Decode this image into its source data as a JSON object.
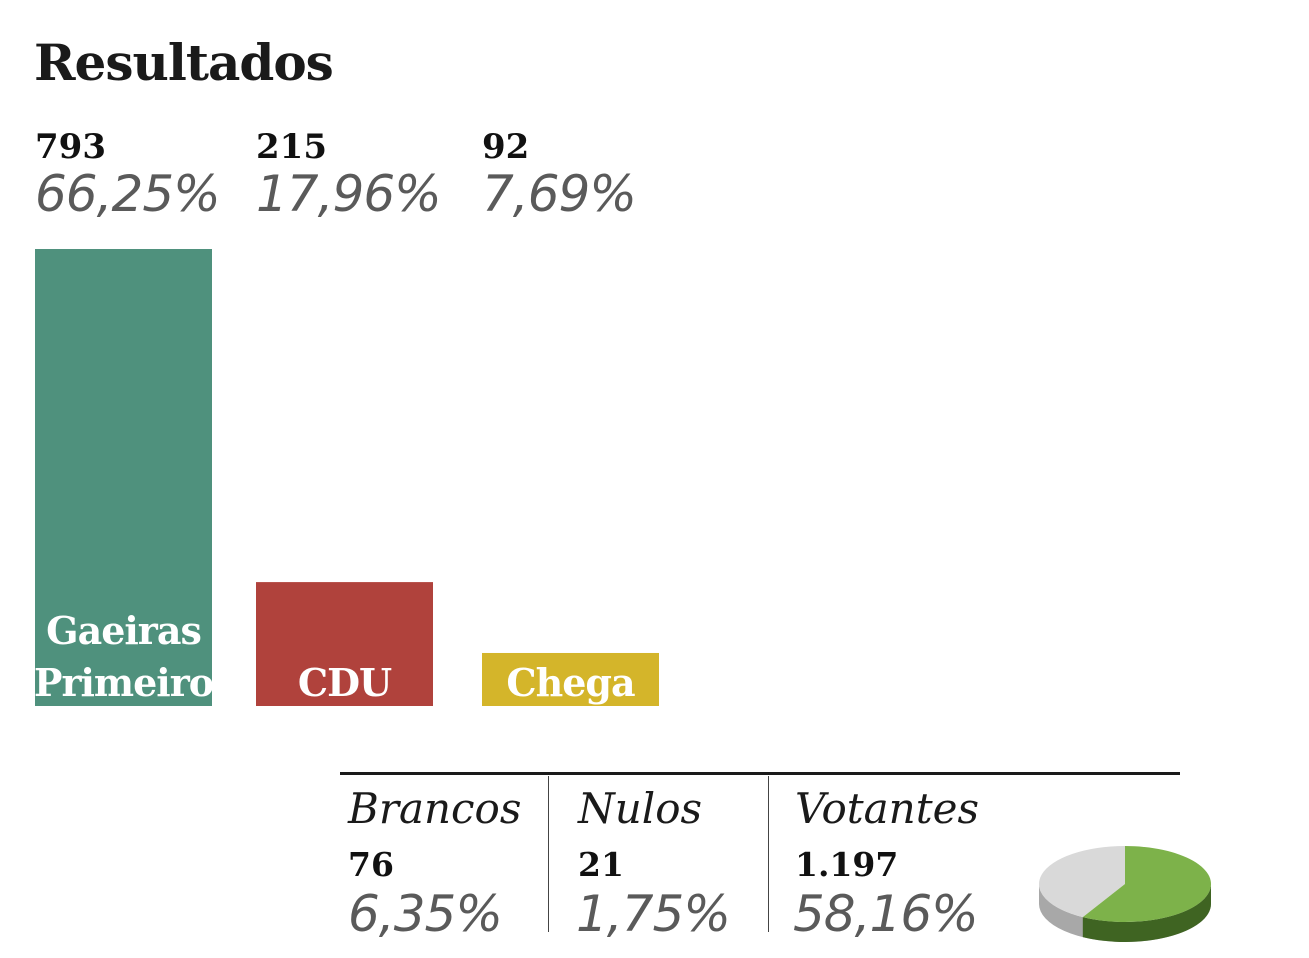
{
  "title": "Resultados",
  "chart_data": {
    "type": "bar",
    "categories": [
      "Gaeiras Primeiro",
      "CDU",
      "Chega"
    ],
    "values": [
      793,
      215,
      92
    ],
    "percent_labels": [
      "66,25%",
      "17,96%",
      "7,69%"
    ],
    "count_labels": [
      "793",
      "215",
      "92"
    ],
    "colors": [
      "#4f917d",
      "#b0423c",
      "#d4b52a"
    ]
  },
  "footer": {
    "items": [
      {
        "label": "Brancos",
        "count": "76",
        "percent": "6,35%"
      },
      {
        "label": "Nulos",
        "count": "21",
        "percent": "1,75%"
      },
      {
        "label": "Votantes",
        "count": "1.197",
        "percent": "58,16%"
      }
    ],
    "turnout_pie": {
      "value": 58.16,
      "color_on": "#7db24a",
      "color_off": "#d9d9d9"
    }
  }
}
